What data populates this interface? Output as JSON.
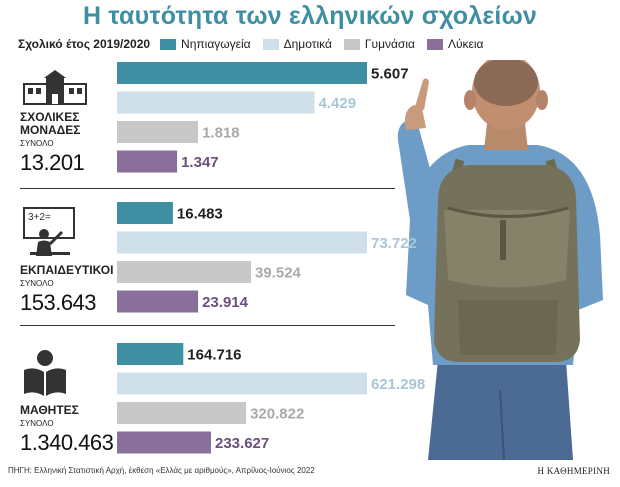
{
  "title": "Η ταυτότητα των ελληνικών σχολείων",
  "legend": {
    "year_label": "Σχολικό έτος 2019/2020",
    "items": [
      {
        "label": "Νηπιαγωγεία",
        "color": "#3f8fa3"
      },
      {
        "label": "Δημοτικά",
        "color": "#cfe0eb"
      },
      {
        "label": "Γυμνάσια",
        "color": "#c8c8c8"
      },
      {
        "label": "Λύκεια",
        "color": "#8a6f9a"
      }
    ]
  },
  "sections": [
    {
      "name_line1": "ΣΧΟΛΙΚΕΣ",
      "name_line2": "ΜΟΝΑΔΕΣ",
      "sub": "ΣΥΝΟΛΟ",
      "total": "13.201",
      "icon": "school-building-icon"
    },
    {
      "name_line1": "ΕΚΠΑΙΔΕΥΤΙΚΟΙ",
      "name_line2": "",
      "sub": "ΣΥΝΟΛΟ",
      "total": "153.643",
      "icon": "teacher-at-board-icon"
    },
    {
      "name_line1": "ΜΑΘΗΤΕΣ",
      "name_line2": "",
      "sub": "ΣΥΝΟΛΟ",
      "total": "1.340.463",
      "icon": "student-reading-icon"
    }
  ],
  "chart_data": {
    "type": "bar",
    "orientation": "horizontal",
    "series_names": [
      "Νηπιαγωγεία",
      "Δημοτικά",
      "Γυμνάσια",
      "Λύκεια"
    ],
    "colors": [
      "#3f8fa3",
      "#cfe0eb",
      "#c8c8c8",
      "#8a6f9a"
    ],
    "label_colors": [
      "#222222",
      "#a9c6d6",
      "#a9a9a9",
      "#6b4f7e"
    ],
    "groups": [
      {
        "name": "ΣΧΟΛΙΚΕΣ ΜΟΝΑΔΕΣ",
        "values": [
          5607,
          4429,
          1818,
          1347
        ],
        "labels": [
          "5.607",
          "4.429",
          "1.818",
          "1.347"
        ]
      },
      {
        "name": "ΕΚΠΑΙΔΕΥΤΙΚΟΙ",
        "values": [
          16483,
          73722,
          39524,
          23914
        ],
        "labels": [
          "16.483",
          "73.722",
          "39.524",
          "23.914"
        ]
      },
      {
        "name": "ΜΑΘΗΤΕΣ",
        "values": [
          164716,
          621298,
          320822,
          233627
        ],
        "labels": [
          "164.716",
          "621.298",
          "320.822",
          "233.627"
        ]
      }
    ]
  },
  "source": "ΠΗΓΗ: Ελληνική Στατιστική Αρχή, έκθεση «Ελλάς με αριθμούς», Απρίλιος-Ιούνιος 2022",
  "brand": "Η ΚΑΘΗΜΕΡΙΝΗ"
}
